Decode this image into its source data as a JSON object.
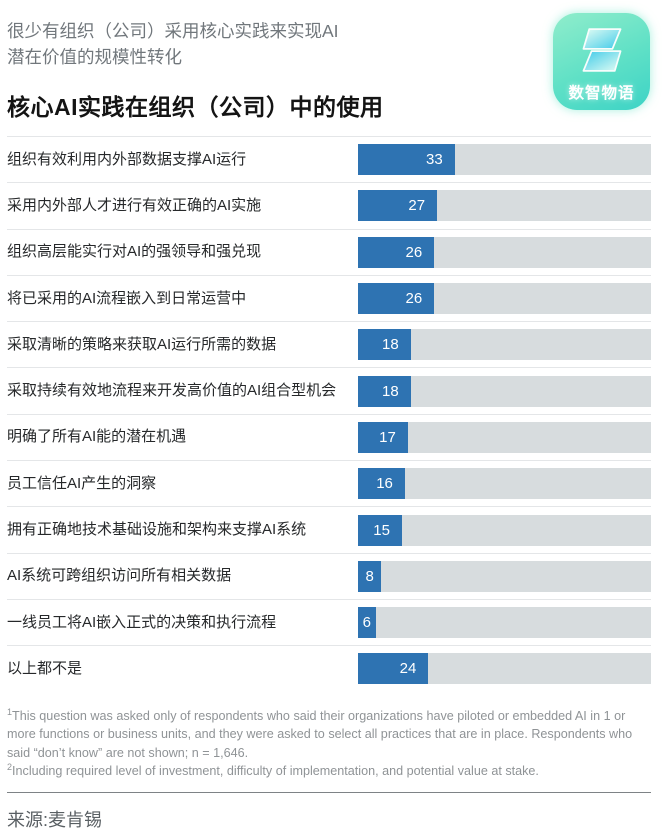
{
  "header": {
    "subtitle_line1": "很少有组织（公司）采用核心实践来实现AI",
    "subtitle_line2": "潜在价值的规模性转化",
    "title": "核心AI实践在组织（公司）中的使用",
    "logo_text": "数智物语"
  },
  "chart_data": {
    "type": "bar",
    "orientation": "horizontal",
    "title": "核心AI实践在组织（公司）中的使用",
    "xlim": [
      0,
      100
    ],
    "unit": "% of respondents",
    "grid": false,
    "bar_color": "#2e73b2",
    "track_color": "#d7dcde",
    "categories": [
      "组织有效利用内外部数据支撑AI运行",
      "采用内外部人才进行有效正确的AI实施",
      "组织高层能实行对AI的强领导和强兑现",
      "将已采用的AI流程嵌入到日常运营中",
      "采取清晰的策略来获取AI运行所需的数据",
      "采取持续有效地流程来开发高价值的AI组合型机会",
      "明确了所有AI能的潜在机遇",
      "员工信任AI产生的洞察",
      "拥有正确地技术基础设施和架构来支撑AI系统",
      "AI系统可跨组织访问所有相关数据",
      "一线员工将AI嵌入正式的决策和执行流程",
      "以上都不是"
    ],
    "values": [
      33,
      27,
      26,
      26,
      18,
      18,
      17,
      16,
      15,
      8,
      6,
      24
    ]
  },
  "footnotes": [
    {
      "marker": "1",
      "text": "This question was asked only of respondents who said their organizations have piloted or embedded AI in 1 or more functions or business units, and they were asked to select all practices that are in place. Respondents who said “don’t know” are not shown; n = 1,646."
    },
    {
      "marker": "2",
      "text": "Including required level of investment, difficulty of implementation, and potential value at stake."
    }
  ],
  "source": "来源:麦肯锡"
}
